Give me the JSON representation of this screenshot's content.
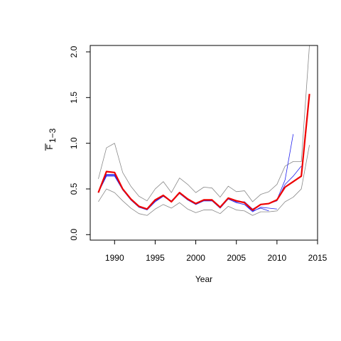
{
  "chart_data": {
    "type": "line",
    "xlabel": "Year",
    "ylabel": "F",
    "ylabel_subscript": "1−3",
    "xlim": [
      1987,
      2015
    ],
    "ylim": [
      -0.06,
      2.07
    ],
    "x_ticks": [
      1990,
      1995,
      2000,
      2005,
      2010,
      2015
    ],
    "y_ticks": [
      0.0,
      0.5,
      1.0,
      1.5,
      2.0
    ],
    "grid": false,
    "legend": "none",
    "colors": {
      "upper_band": "#888888",
      "lower_band": "#888888",
      "retro": "#2222ee",
      "estimate": "#ee0000",
      "estimate_recent": "#ee0000"
    },
    "series": [
      {
        "id": "upper_band",
        "x": [
          1988,
          1989,
          1990,
          1991,
          1992,
          1993,
          1994,
          1995,
          1996,
          1997,
          1998,
          1999,
          2000,
          2001,
          2002,
          2003,
          2004,
          2005,
          2006,
          2007,
          2008,
          2009,
          2010,
          2011,
          2012,
          2013,
          2014
        ],
        "y": [
          0.61,
          0.95,
          1.0,
          0.68,
          0.53,
          0.42,
          0.37,
          0.5,
          0.58,
          0.46,
          0.62,
          0.55,
          0.46,
          0.52,
          0.51,
          0.41,
          0.53,
          0.47,
          0.48,
          0.36,
          0.44,
          0.47,
          0.55,
          0.75,
          0.8,
          0.8,
          2.07
        ]
      },
      {
        "id": "lower_band",
        "x": [
          1988,
          1989,
          1990,
          1991,
          1992,
          1993,
          1994,
          1995,
          1996,
          1997,
          1998,
          1999,
          2000,
          2001,
          2002,
          2003,
          2004,
          2005,
          2006,
          2007,
          2008,
          2009,
          2010,
          2011,
          2012,
          2013,
          2014
        ],
        "y": [
          0.36,
          0.5,
          0.46,
          0.37,
          0.29,
          0.23,
          0.21,
          0.28,
          0.33,
          0.29,
          0.35,
          0.28,
          0.24,
          0.27,
          0.27,
          0.23,
          0.31,
          0.27,
          0.26,
          0.21,
          0.25,
          0.25,
          0.26,
          0.36,
          0.41,
          0.5,
          0.98
        ]
      },
      {
        "id": "retro",
        "x": [
          1988,
          1989,
          1990,
          1991,
          1992,
          1993,
          1994,
          1995,
          1996,
          1997,
          1998,
          1999,
          2000,
          2001,
          2002,
          2003,
          2004,
          2005,
          2006,
          2007,
          2008,
          2009,
          2010,
          2011,
          2012
        ],
        "y": [
          0.46,
          0.65,
          0.65,
          0.5,
          0.39,
          0.31,
          0.28,
          0.37,
          0.42,
          0.37,
          0.46,
          0.39,
          0.34,
          0.37,
          0.37,
          0.3,
          0.4,
          0.36,
          0.36,
          0.28,
          0.33,
          0.34,
          0.38,
          0.6,
          1.1
        ]
      },
      {
        "id": "retro",
        "x": [
          1988,
          1989,
          1990,
          1991,
          1992,
          1993,
          1994,
          1995,
          1996,
          1997,
          1998,
          1999,
          2000,
          2001,
          2002,
          2003,
          2004,
          2005,
          2006,
          2007,
          2008,
          2009,
          2010,
          2011,
          2012,
          2013
        ],
        "y": [
          0.46,
          0.66,
          0.66,
          0.49,
          0.39,
          0.31,
          0.28,
          0.37,
          0.43,
          0.36,
          0.46,
          0.39,
          0.34,
          0.38,
          0.38,
          0.3,
          0.4,
          0.36,
          0.35,
          0.27,
          0.33,
          0.34,
          0.37,
          0.55,
          0.64,
          0.75
        ]
      },
      {
        "id": "retro",
        "x": [
          1988,
          1989,
          1990,
          1991,
          1992,
          1993,
          1994,
          1995,
          1996,
          1997,
          1998,
          1999,
          2000,
          2001,
          2002,
          2003,
          2004,
          2005,
          2006,
          2007,
          2008,
          2009,
          2010
        ],
        "y": [
          0.46,
          0.64,
          0.64,
          0.49,
          0.38,
          0.3,
          0.28,
          0.36,
          0.42,
          0.36,
          0.45,
          0.38,
          0.33,
          0.37,
          0.37,
          0.29,
          0.39,
          0.35,
          0.33,
          0.25,
          0.3,
          0.29,
          0.28
        ]
      },
      {
        "id": "retro",
        "x": [
          1988,
          1989,
          1990,
          1991,
          1992,
          1993,
          1994,
          1995,
          1996,
          1997,
          1998,
          1999,
          2000,
          2001,
          2002,
          2003,
          2004,
          2005,
          2006,
          2007,
          2008,
          2009
        ],
        "y": [
          0.46,
          0.65,
          0.65,
          0.49,
          0.38,
          0.3,
          0.27,
          0.36,
          0.42,
          0.36,
          0.45,
          0.38,
          0.33,
          0.37,
          0.37,
          0.29,
          0.39,
          0.35,
          0.33,
          0.26,
          0.29,
          0.26
        ]
      },
      {
        "id": "estimate",
        "x": [
          1988,
          1989,
          1990,
          1991,
          1992,
          1993,
          1994,
          1995,
          1996,
          1997,
          1998,
          1999,
          2000,
          2001,
          2002,
          2003,
          2004,
          2005,
          2006,
          2007,
          2008,
          2009,
          2010,
          2011
        ],
        "y": [
          0.46,
          0.69,
          0.68,
          0.5,
          0.39,
          0.31,
          0.28,
          0.38,
          0.43,
          0.36,
          0.46,
          0.39,
          0.34,
          0.38,
          0.38,
          0.3,
          0.4,
          0.37,
          0.35,
          0.27,
          0.33,
          0.34,
          0.38,
          0.52
        ]
      },
      {
        "id": "estimate_recent",
        "x": [
          2011,
          2012,
          2013,
          2014
        ],
        "y": [
          0.52,
          0.58,
          0.64,
          1.54
        ]
      }
    ]
  }
}
